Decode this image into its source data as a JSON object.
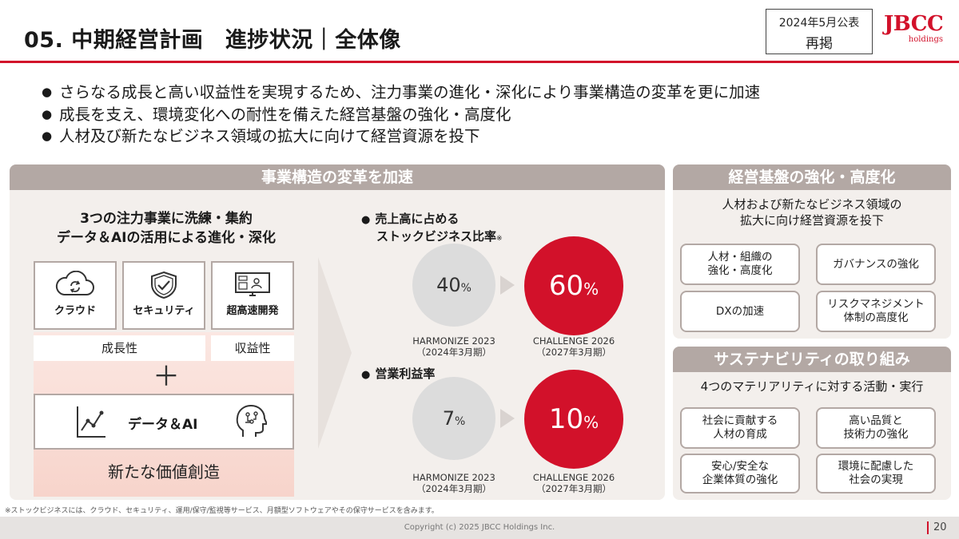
{
  "header": {
    "title": "05. 中期経営計画　進捗状況｜全体像",
    "pub_line1": "2024年5月公表",
    "pub_line2": "再掲",
    "logo_text": "JBCC",
    "logo_sub": "holdings"
  },
  "bullets": [
    "さらなる成長と高い収益性を実現するため、注力事業の進化・深化により事業構造の変革を更に加速",
    "成長を支え、環境変化への耐性を備えた経営基盤の強化・高度化",
    "人材及び新たなビジネス領域の拡大に向けて経営資源を投下"
  ],
  "left_panel": {
    "header": "事業構造の変革を加速",
    "focus_line1": "3つの注力事業に洗練・集約",
    "focus_line2": "データ＆AIの活用による進化・深化",
    "services": [
      {
        "label": "クラウド",
        "icon": "cloud-sync-icon"
      },
      {
        "label": "セキュリティ",
        "icon": "shield-check-icon"
      },
      {
        "label": "超高速開発",
        "icon": "dev-screen-icon"
      }
    ],
    "tag_growth": "成長性",
    "tag_profit": "収益性",
    "plus": "＋",
    "data_ai": "データ＆AI",
    "value": "新たな価値創造"
  },
  "kpi": {
    "stock_title_1": "売上高に占める",
    "stock_title_2": "ストックビジネス比率",
    "stock_mark": "※",
    "stock_current": "40",
    "stock_target": "60",
    "profit_title": "営業利益率",
    "profit_current": "7",
    "profit_target": "10",
    "unit": "%",
    "harmonize": "HARMONIZE 2023",
    "harmonize_period": "（2024年3月期）",
    "challenge": "CHALLENGE 2026",
    "challenge_period": "（2027年3月期）"
  },
  "right_top": {
    "header": "経営基盤の強化・高度化",
    "lead_1": "人材および新たなビジネス領域の",
    "lead_2": "拡大に向け経営資源を投下",
    "items": [
      "人材・組織の\n強化・高度化",
      "ガバナンスの強化",
      "DXの加速",
      "リスクマネジメント\n体制の高度化"
    ]
  },
  "right_bottom": {
    "header": "サステナビリティの取り組み",
    "lead": "4つのマテリアリティに対する活動・実行",
    "items": [
      "社会に貢献する\n人材の育成",
      "高い品質と\n技術力の強化",
      "安心/安全な\n企業体質の強化",
      "環境に配慮した\n社会の実現"
    ]
  },
  "footnote": "※ストックビジネスには、クラウド、セキュリティ、運用/保守/監視等サービス、月額型ソフトウェアやその保守サービスを含みます。",
  "footer": {
    "copyright": "Copyright (c) 2025 JBCC Holdings Inc.",
    "page": "20"
  },
  "colors": {
    "accent": "#d2112a",
    "panel_header": "#b3a8a4",
    "panel_bg": "#f3efec"
  }
}
